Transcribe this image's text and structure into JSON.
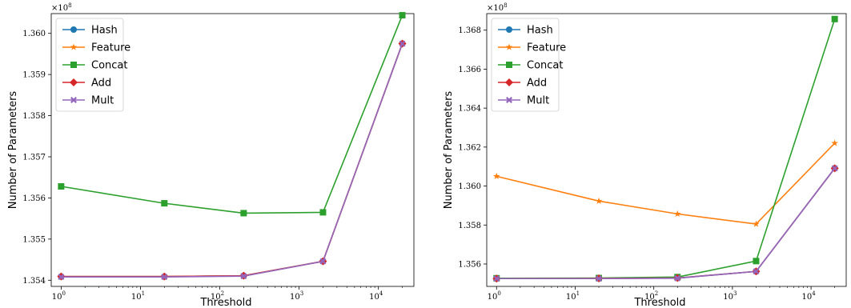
{
  "chart_data": [
    {
      "type": "line",
      "title": "",
      "xlabel": "Threshold",
      "ylabel": "Number of Parameters",
      "xscale": "log",
      "y_multiplier_label": "×10^8",
      "x_ticks": [
        1,
        10,
        100,
        1000,
        10000
      ],
      "x_tick_labels": [
        {
          "base": "10",
          "exp": "0"
        },
        {
          "base": "10",
          "exp": "1"
        },
        {
          "base": "10",
          "exp": "2"
        },
        {
          "base": "10",
          "exp": "3"
        },
        {
          "base": "10",
          "exp": "4"
        }
      ],
      "y_ticks": [
        1.354,
        1.355,
        1.356,
        1.357,
        1.358,
        1.359,
        1.36
      ],
      "y_tick_labels": [
        "1.354",
        "1.355",
        "1.356",
        "1.357",
        "1.358",
        "1.359",
        "1.360"
      ],
      "xlim": [
        0.75,
        28000
      ],
      "ylim": [
        1.35385,
        1.36048
      ],
      "x": [
        1,
        20,
        200,
        2000,
        20000
      ],
      "legend_position": "upper-left",
      "series": [
        {
          "name": "Hash",
          "color": "#1f77b4",
          "marker": "circle",
          "values": [
            1.35409,
            1.35409,
            1.35411,
            1.35446,
            1.35975
          ]
        },
        {
          "name": "Feature",
          "color": "#ff7f0e",
          "marker": "star",
          "values": [
            1.35409,
            1.35409,
            1.35411,
            1.35446,
            1.35975
          ]
        },
        {
          "name": "Concat",
          "color": "#2ca02c",
          "marker": "square",
          "values": [
            1.35628,
            1.35587,
            1.35563,
            1.35565,
            1.36044
          ]
        },
        {
          "name": "Add",
          "color": "#d62728",
          "marker": "diamond",
          "values": [
            1.35409,
            1.35409,
            1.35411,
            1.35446,
            1.35975
          ]
        },
        {
          "name": "Mult",
          "color": "#9467bd",
          "marker": "x",
          "values": [
            1.35408,
            1.35408,
            1.3541,
            1.35446,
            1.35975
          ]
        }
      ]
    },
    {
      "type": "line",
      "title": "",
      "xlabel": "Threshold",
      "ylabel": "Number of Parameters",
      "xscale": "log",
      "y_multiplier_label": "×10^8",
      "x_ticks": [
        1,
        10,
        100,
        1000,
        10000
      ],
      "x_tick_labels": [
        {
          "base": "10",
          "exp": "0"
        },
        {
          "base": "10",
          "exp": "1"
        },
        {
          "base": "10",
          "exp": "2"
        },
        {
          "base": "10",
          "exp": "3"
        },
        {
          "base": "10",
          "exp": "4"
        }
      ],
      "y_ticks": [
        1.356,
        1.358,
        1.36,
        1.362,
        1.364,
        1.366,
        1.368
      ],
      "y_tick_labels": [
        "1.356",
        "1.358",
        "1.360",
        "1.362",
        "1.364",
        "1.366",
        "1.368"
      ],
      "xlim": [
        0.75,
        28000
      ],
      "ylim": [
        1.35485,
        1.36885
      ],
      "x": [
        1,
        20,
        200,
        2000,
        20000
      ],
      "legend_position": "upper-left",
      "series": [
        {
          "name": "Hash",
          "color": "#1f77b4",
          "marker": "circle",
          "values": [
            1.35525,
            1.35526,
            1.35528,
            1.35562,
            1.36091
          ]
        },
        {
          "name": "Feature",
          "color": "#ff7f0e",
          "marker": "star",
          "values": [
            1.3605,
            1.35923,
            1.35857,
            1.35805,
            1.3622
          ]
        },
        {
          "name": "Concat",
          "color": "#2ca02c",
          "marker": "square",
          "values": [
            1.35527,
            1.35528,
            1.35533,
            1.35615,
            1.36857
          ]
        },
        {
          "name": "Add",
          "color": "#d62728",
          "marker": "diamond",
          "values": [
            1.35525,
            1.35526,
            1.35528,
            1.35562,
            1.36091
          ]
        },
        {
          "name": "Mult",
          "color": "#9467bd",
          "marker": "x",
          "values": [
            1.35525,
            1.35525,
            1.35527,
            1.35562,
            1.36091
          ]
        }
      ]
    }
  ]
}
